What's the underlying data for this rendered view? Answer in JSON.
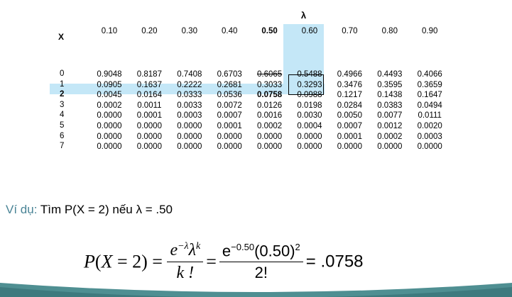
{
  "table": {
    "lambda_symbol": "λ",
    "x_header": "X",
    "lambdas": [
      "0.10",
      "0.20",
      "0.30",
      "0.40",
      "0.50",
      "0.60",
      "0.70",
      "0.80",
      "0.90"
    ],
    "rows": [
      {
        "x": "0",
        "values": [
          "0.9048",
          "0.8187",
          "0.7408",
          "0.6703",
          "0.6065",
          "0.5488",
          "0.4966",
          "0.4493",
          "0.4066"
        ]
      },
      {
        "x": "1",
        "values": [
          "0.0905",
          "0.1637",
          "0.2222",
          "0.2681",
          "0.3033",
          "0.3293",
          "0.3476",
          "0.3595",
          "0.3659"
        ]
      },
      {
        "x": "2",
        "values": [
          "0.0045",
          "0.0164",
          "0.0333",
          "0.0536",
          "0.0758",
          "0.0988",
          "0.1217",
          "0.1438",
          "0.1647"
        ]
      },
      {
        "x": "3",
        "values": [
          "0.0002",
          "0.0011",
          "0.0033",
          "0.0072",
          "0.0126",
          "0.0198",
          "0.0284",
          "0.0383",
          "0.0494"
        ]
      },
      {
        "x": "4",
        "values": [
          "0.0000",
          "0.0001",
          "0.0003",
          "0.0007",
          "0.0016",
          "0.0030",
          "0.0050",
          "0.0077",
          "0.0111"
        ]
      },
      {
        "x": "5",
        "values": [
          "0.0000",
          "0.0000",
          "0.0000",
          "0.0001",
          "0.0002",
          "0.0004",
          "0.0007",
          "0.0012",
          "0.0020"
        ]
      },
      {
        "x": "6",
        "values": [
          "0.0000",
          "0.0000",
          "0.0000",
          "0.0000",
          "0.0000",
          "0.0000",
          "0.0001",
          "0.0002",
          "0.0003"
        ]
      },
      {
        "x": "7",
        "values": [
          "0.0000",
          "0.0000",
          "0.0000",
          "0.0000",
          "0.0000",
          "0.0000",
          "0.0000",
          "0.0000",
          "0.0000"
        ]
      }
    ]
  },
  "example": {
    "label": "Ví dụ:",
    "text": "Tìm P(X = 2)  nếu  λ = .50"
  },
  "formula": {
    "lhs": "P(X = 2) =",
    "num1": "e^{-λ}λ^k",
    "den1": "k!",
    "num2": "e^{-0.50}(0.50)^2",
    "den2": "2!",
    "result": "= .0758"
  },
  "colors": {
    "highlight": "#c4e7f7",
    "accent_label": "#4a8496",
    "bottom_arc": "#4f8f92"
  }
}
